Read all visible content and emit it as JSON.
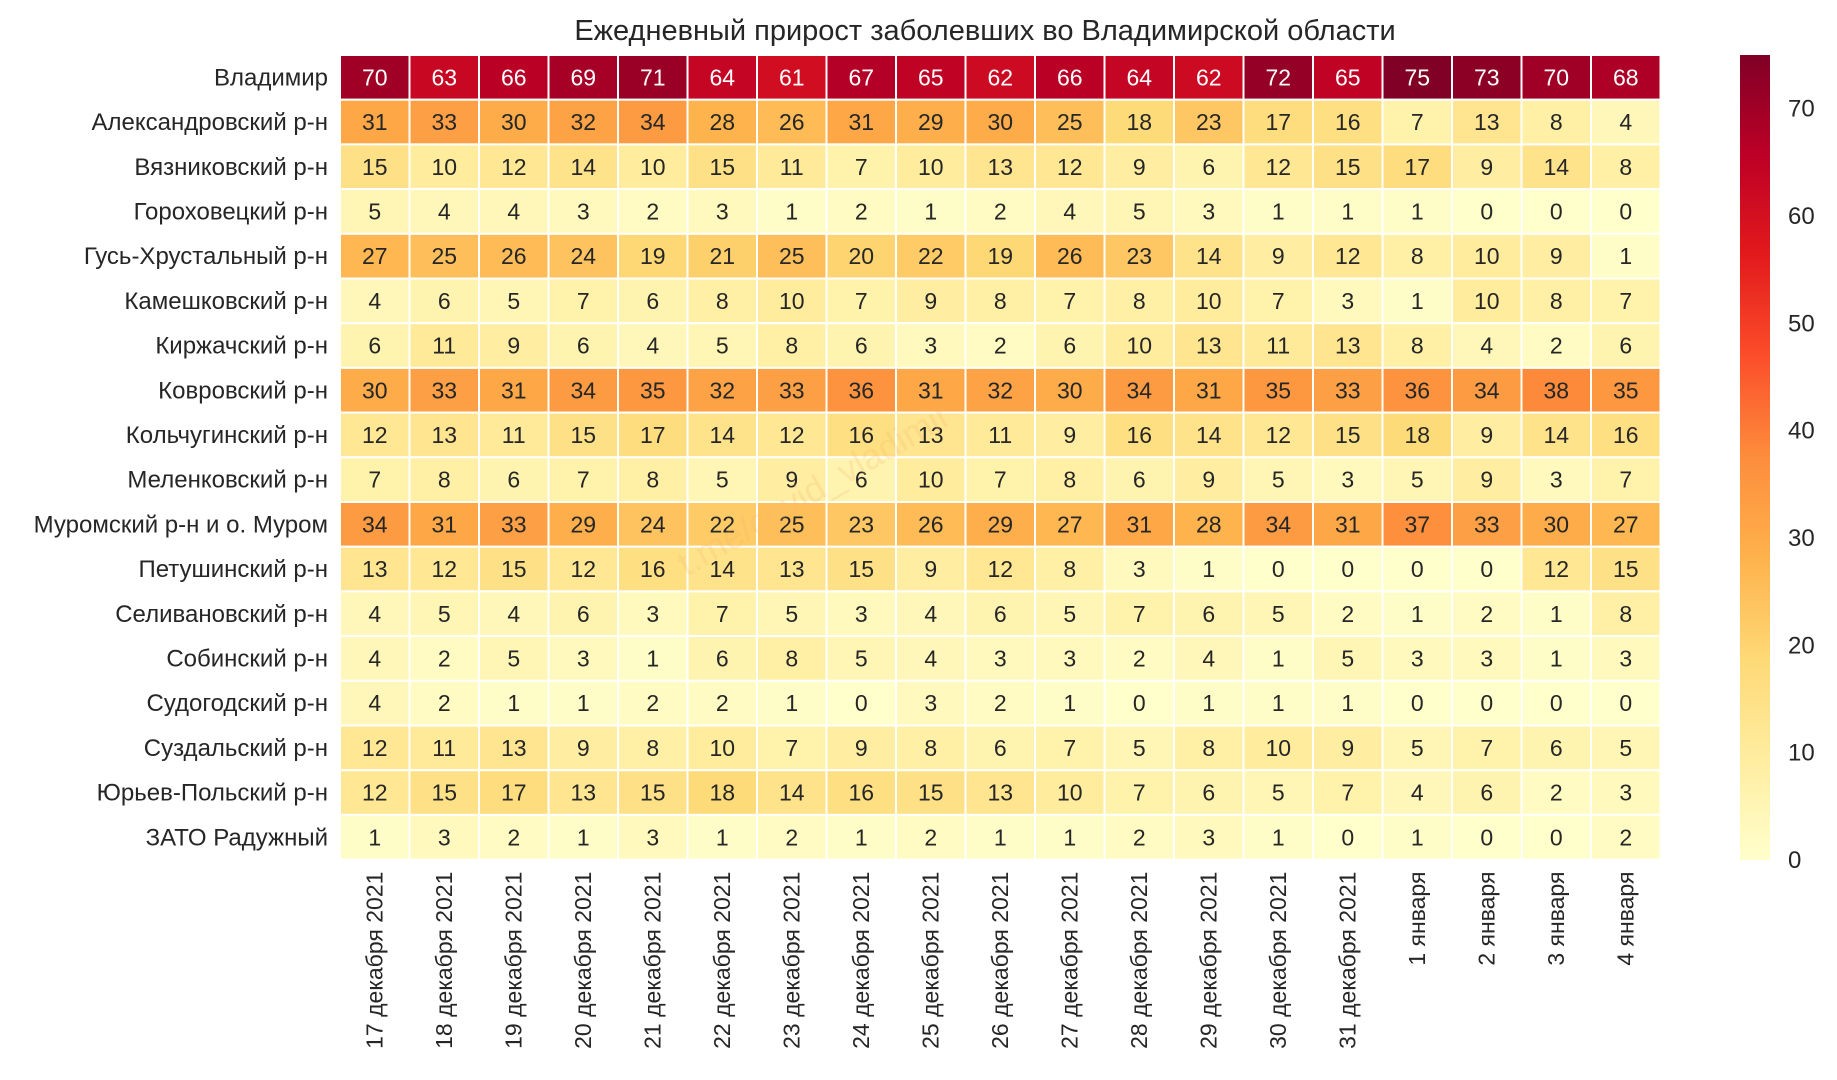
{
  "chart_data": {
    "type": "heatmap",
    "title": "Ежедневный прирост заболевших во Владимирской области",
    "watermark": "t.me/covid_vladimir",
    "rows": [
      "Владимир",
      "Александровский р-н",
      "Вязниковский р-н",
      "Гороховецкий р-н",
      "Гусь-Хрустальный р-н",
      "Камешковский р-н",
      "Киржачский р-н",
      "Ковровский р-н",
      "Кольчугинский р-н",
      "Меленковский р-н",
      "Муромский р-н и о. Муром",
      "Петушинский р-н",
      "Селивановский р-н",
      "Собинский р-н",
      "Судогодский р-н",
      "Суздальский р-н",
      "Юрьев-Польский р-н",
      "ЗАТО Радужный"
    ],
    "columns": [
      "17 декабря 2021",
      "18 декабря 2021",
      "19 декабря 2021",
      "20 декабря 2021",
      "21 декабря 2021",
      "22 декабря 2021",
      "23 декабря 2021",
      "24 декабря 2021",
      "25 декабря 2021",
      "26 декабря 2021",
      "27 декабря 2021",
      "28 декабря 2021",
      "29 декабря 2021",
      "30 декабря 2021",
      "31 декабря 2021",
      "1 января",
      "2 января",
      "3 января",
      "4 января"
    ],
    "values": [
      [
        70,
        63,
        66,
        69,
        71,
        64,
        61,
        67,
        65,
        62,
        66,
        64,
        62,
        72,
        65,
        75,
        73,
        70,
        68
      ],
      [
        31,
        33,
        30,
        32,
        34,
        28,
        26,
        31,
        29,
        30,
        25,
        18,
        23,
        17,
        16,
        7,
        13,
        8,
        4
      ],
      [
        15,
        10,
        12,
        14,
        10,
        15,
        11,
        7,
        10,
        13,
        12,
        9,
        6,
        12,
        15,
        17,
        9,
        14,
        8
      ],
      [
        5,
        4,
        4,
        3,
        2,
        3,
        1,
        2,
        1,
        2,
        4,
        5,
        3,
        1,
        1,
        1,
        0,
        0,
        0
      ],
      [
        27,
        25,
        26,
        24,
        19,
        21,
        25,
        20,
        22,
        19,
        26,
        23,
        14,
        9,
        12,
        8,
        10,
        9,
        1
      ],
      [
        4,
        6,
        5,
        7,
        6,
        8,
        10,
        7,
        9,
        8,
        7,
        8,
        10,
        7,
        3,
        1,
        10,
        8,
        7
      ],
      [
        6,
        11,
        9,
        6,
        4,
        5,
        8,
        6,
        3,
        2,
        6,
        10,
        13,
        11,
        13,
        8,
        4,
        2,
        6
      ],
      [
        30,
        33,
        31,
        34,
        35,
        32,
        33,
        36,
        31,
        32,
        30,
        34,
        31,
        35,
        33,
        36,
        34,
        38,
        35
      ],
      [
        12,
        13,
        11,
        15,
        17,
        14,
        12,
        16,
        13,
        11,
        9,
        16,
        14,
        12,
        15,
        18,
        9,
        14,
        16
      ],
      [
        7,
        8,
        6,
        7,
        8,
        5,
        9,
        6,
        10,
        7,
        8,
        6,
        9,
        5,
        3,
        5,
        9,
        3,
        7
      ],
      [
        34,
        31,
        33,
        29,
        24,
        22,
        25,
        23,
        26,
        29,
        27,
        31,
        28,
        34,
        31,
        37,
        33,
        30,
        27
      ],
      [
        13,
        12,
        15,
        12,
        16,
        14,
        13,
        15,
        9,
        12,
        8,
        3,
        1,
        0,
        0,
        0,
        0,
        12,
        15
      ],
      [
        4,
        5,
        4,
        6,
        3,
        7,
        5,
        3,
        4,
        6,
        5,
        7,
        6,
        5,
        2,
        1,
        2,
        1,
        8
      ],
      [
        4,
        2,
        5,
        3,
        1,
        6,
        8,
        5,
        4,
        3,
        3,
        2,
        4,
        1,
        5,
        3,
        3,
        1,
        3
      ],
      [
        4,
        2,
        1,
        1,
        2,
        2,
        1,
        0,
        3,
        2,
        1,
        0,
        1,
        1,
        1,
        0,
        0,
        0,
        0
      ],
      [
        12,
        11,
        13,
        9,
        8,
        10,
        7,
        9,
        8,
        6,
        7,
        5,
        8,
        10,
        9,
        5,
        7,
        6,
        5
      ],
      [
        12,
        15,
        17,
        13,
        15,
        18,
        14,
        16,
        15,
        13,
        10,
        7,
        6,
        5,
        7,
        4,
        6,
        2,
        3
      ],
      [
        1,
        3,
        2,
        1,
        3,
        1,
        2,
        1,
        2,
        1,
        1,
        2,
        3,
        1,
        0,
        1,
        0,
        0,
        2
      ]
    ],
    "vmin": 0,
    "vmax": 75,
    "colormap": "YlOrRd",
    "colorbar_ticks": [
      0,
      10,
      20,
      30,
      40,
      50,
      60,
      70
    ],
    "grid": false,
    "legend": "colorbar-right"
  }
}
